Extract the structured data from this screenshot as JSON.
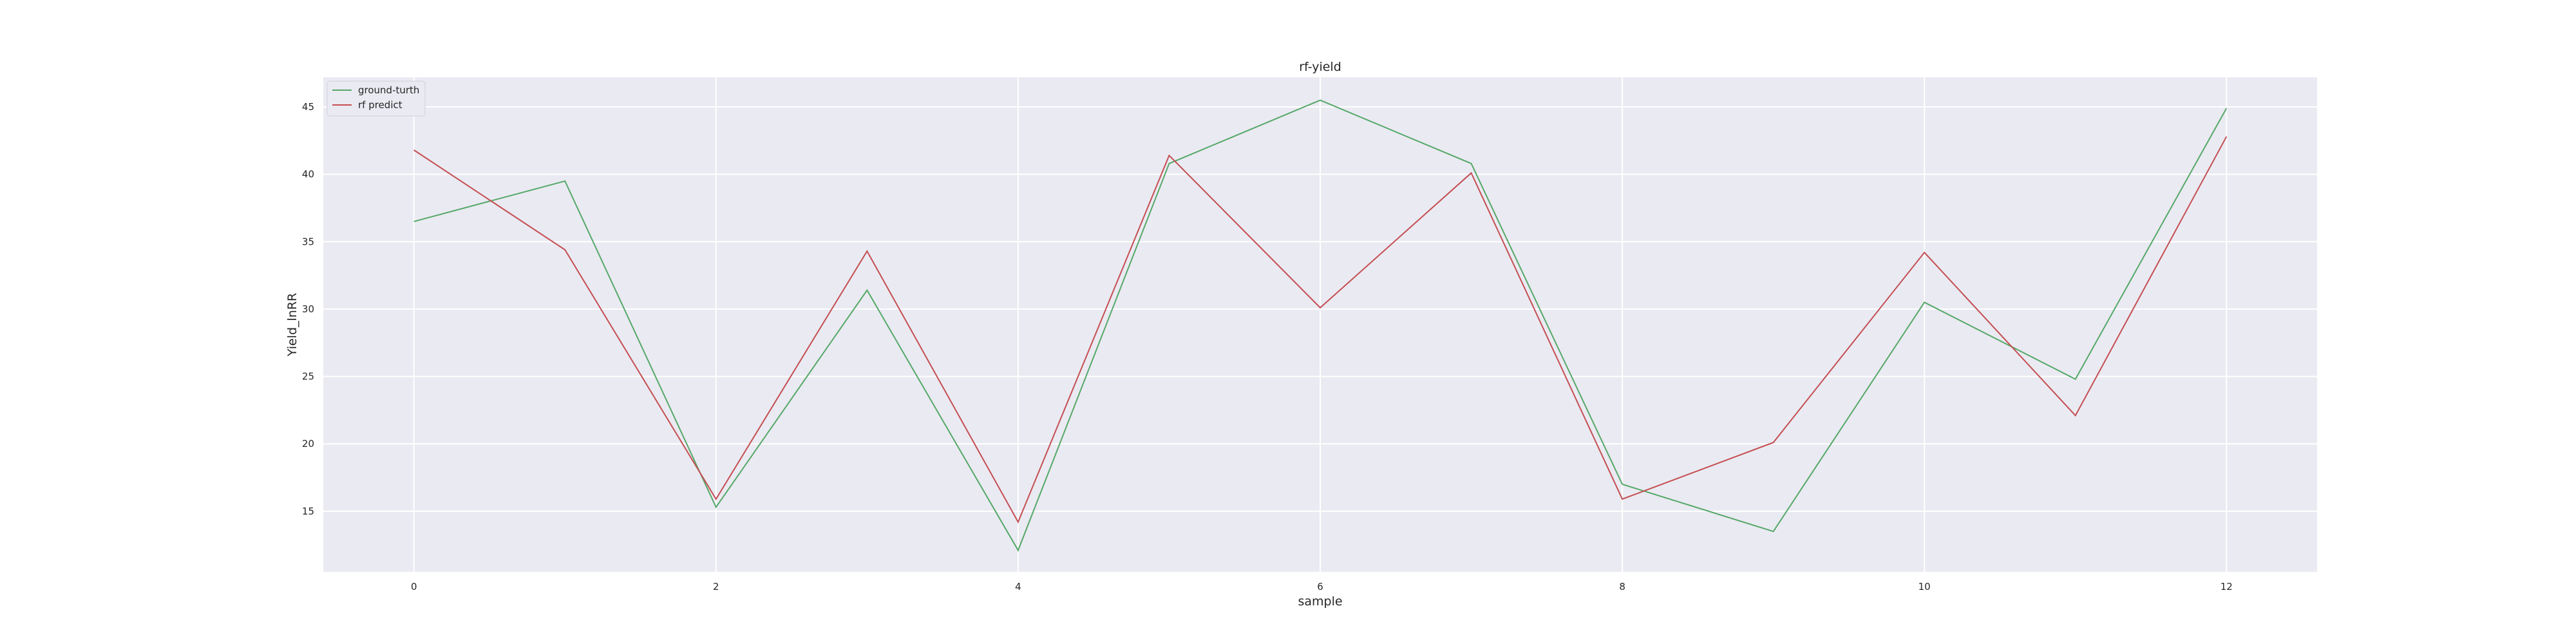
{
  "chart_data": {
    "type": "line",
    "title": "rf-yield",
    "xlabel": "sample",
    "ylabel": "Yield_lnRR",
    "x": [
      0,
      1,
      2,
      3,
      4,
      5,
      6,
      7,
      8,
      9,
      10,
      11,
      12
    ],
    "xlim": [
      -0.6,
      12.6
    ],
    "ylim": [
      10.5,
      47.2
    ],
    "xticks": [
      0,
      2,
      4,
      6,
      8,
      10,
      12
    ],
    "yticks": [
      15,
      20,
      25,
      30,
      35,
      40,
      45
    ],
    "grid": true,
    "legend_position": "top-left",
    "series": [
      {
        "name": "ground-turth",
        "color": "#55a868",
        "values": [
          36.5,
          39.5,
          15.3,
          31.4,
          12.1,
          40.8,
          45.5,
          40.8,
          17.0,
          13.5,
          30.5,
          24.8,
          44.9
        ]
      },
      {
        "name": "rf predict",
        "color": "#c44e52",
        "values": [
          41.8,
          34.4,
          15.9,
          34.3,
          14.2,
          41.4,
          30.1,
          40.1,
          15.9,
          20.1,
          34.2,
          22.1,
          42.8
        ]
      }
    ]
  }
}
